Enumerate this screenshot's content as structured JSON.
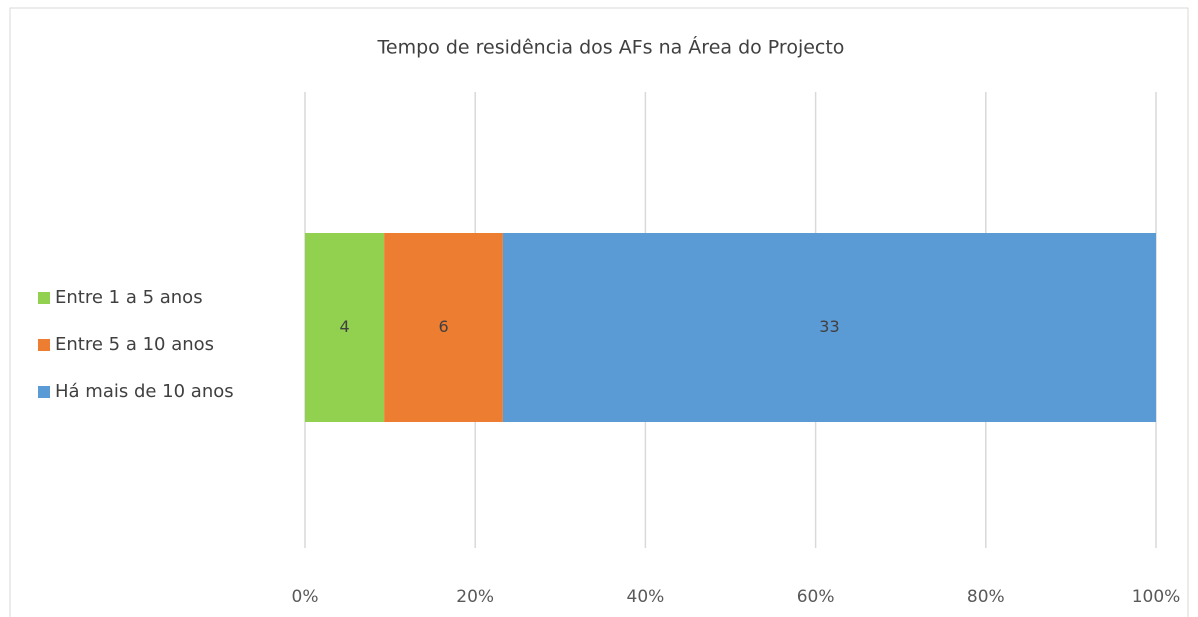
{
  "chart_data": {
    "type": "stacked_bar_100",
    "title": "Tempo de residência dos AFs na Área do Projecto",
    "categories": [
      null
    ],
    "series": [
      {
        "name": "Entre 1 a 5 anos",
        "color": "#92d050",
        "values": [
          4
        ]
      },
      {
        "name": "Entre 5 a 10 anos",
        "color": "#ed7d31",
        "values": [
          6
        ]
      },
      {
        "name": "Há mais de 10 anos",
        "color": "#5b9bd5",
        "values": [
          33
        ]
      }
    ],
    "xlim": [
      0,
      100
    ],
    "xticks": [
      {
        "value": 0,
        "label": "0%"
      },
      {
        "value": 20,
        "label": "20%"
      },
      {
        "value": 40,
        "label": "40%"
      },
      {
        "value": 60,
        "label": "60%"
      },
      {
        "value": 80,
        "label": "80%"
      },
      {
        "value": 100,
        "label": "100%"
      }
    ],
    "grid": true,
    "legend": "left"
  }
}
